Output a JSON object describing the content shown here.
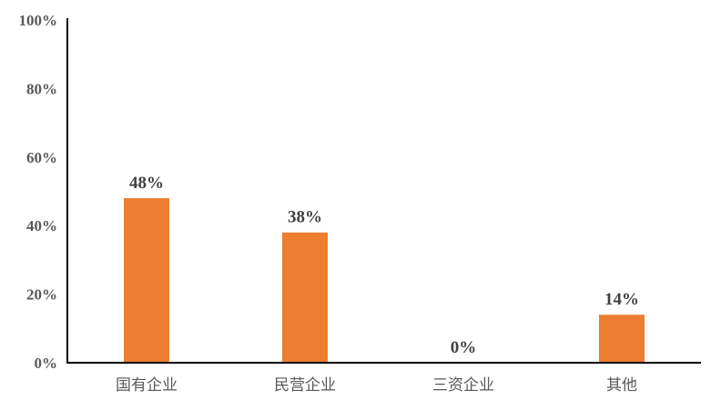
{
  "chart_data": {
    "type": "bar",
    "title": "",
    "xlabel": "",
    "ylabel": "",
    "categories": [
      "国有企业",
      "民营企业",
      "三资企业",
      "其他"
    ],
    "values": [
      48,
      38,
      0,
      14
    ],
    "data_labels": [
      "48%",
      "38%",
      "0%",
      "14%"
    ],
    "ylim": [
      0,
      100
    ],
    "yticks": [
      0,
      20,
      40,
      60,
      80,
      100
    ],
    "ytick_labels": [
      "0%",
      "20%",
      "40%",
      "60%",
      "80%",
      "100%"
    ],
    "grid": false,
    "legend": "none",
    "bar_color": "#ED7D31"
  }
}
